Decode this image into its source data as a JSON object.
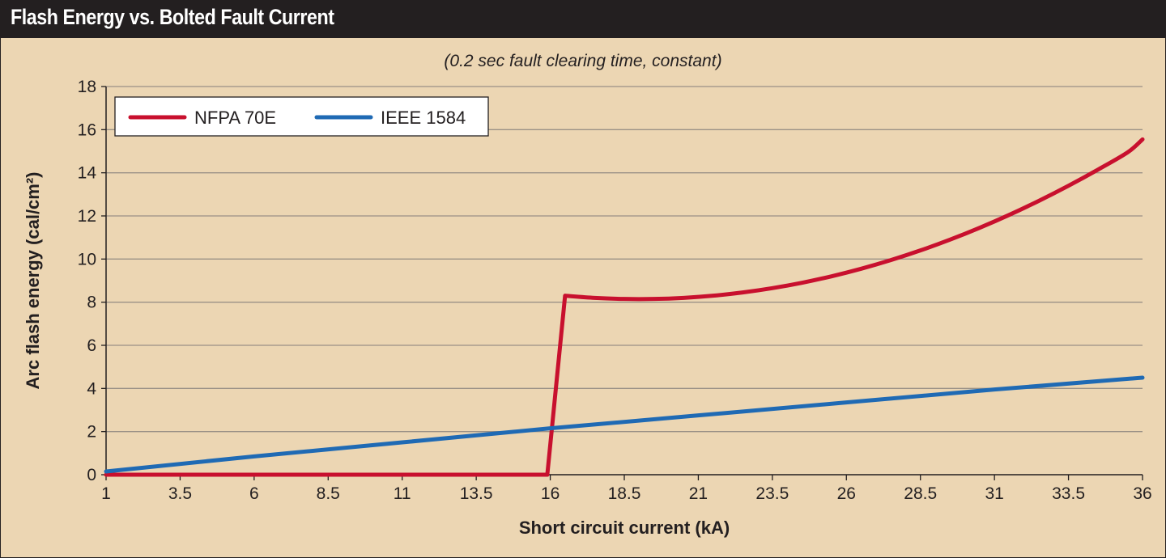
{
  "header": {
    "title": "Flash Energy vs. Bolted Fault Current"
  },
  "chart_data": {
    "type": "line",
    "title": "Flash Energy vs. Bolted Fault Current",
    "subtitle": "(0.2 sec fault clearing time, constant)",
    "xlabel": "Short circuit current (kA)",
    "ylabel": "Arc flash energy (cal/cm²)",
    "xlim": [
      1,
      36
    ],
    "ylim": [
      0,
      18
    ],
    "x_ticks": [
      "1",
      "3.5",
      "6",
      "8.5",
      "11",
      "13.5",
      "16",
      "18.5",
      "21",
      "23.5",
      "26",
      "28.5",
      "31",
      "33.5",
      "36"
    ],
    "y_ticks": [
      "0",
      "2",
      "4",
      "6",
      "8",
      "10",
      "12",
      "14",
      "16",
      "18"
    ],
    "grid": "horizontal",
    "legend_position": "top-left",
    "series": [
      {
        "name": "NFPA 70E",
        "color": "#c8102e",
        "points": [
          [
            1,
            0
          ],
          [
            15.9,
            0
          ],
          [
            16.5,
            8.3
          ],
          [
            17.5,
            8.2
          ],
          [
            18.5,
            8.15
          ],
          [
            19.5,
            8.15
          ],
          [
            20.5,
            8.2
          ],
          [
            21.5,
            8.3
          ],
          [
            22.5,
            8.45
          ],
          [
            23.5,
            8.65
          ],
          [
            24.5,
            8.9
          ],
          [
            25.5,
            9.2
          ],
          [
            26.5,
            9.55
          ],
          [
            27.5,
            9.95
          ],
          [
            28.5,
            10.4
          ],
          [
            29.5,
            10.9
          ],
          [
            30.5,
            11.45
          ],
          [
            31.5,
            12.05
          ],
          [
            32.5,
            12.7
          ],
          [
            33.5,
            13.4
          ],
          [
            34.5,
            14.15
          ],
          [
            35.5,
            14.95
          ],
          [
            36,
            15.55
          ]
        ]
      },
      {
        "name": "IEEE 1584",
        "color": "#1f6ab4",
        "points": [
          [
            1,
            0.15
          ],
          [
            6,
            0.85
          ],
          [
            11,
            1.5
          ],
          [
            16,
            2.15
          ],
          [
            21,
            2.75
          ],
          [
            26,
            3.35
          ],
          [
            31,
            3.95
          ],
          [
            36,
            4.5
          ]
        ]
      }
    ]
  }
}
